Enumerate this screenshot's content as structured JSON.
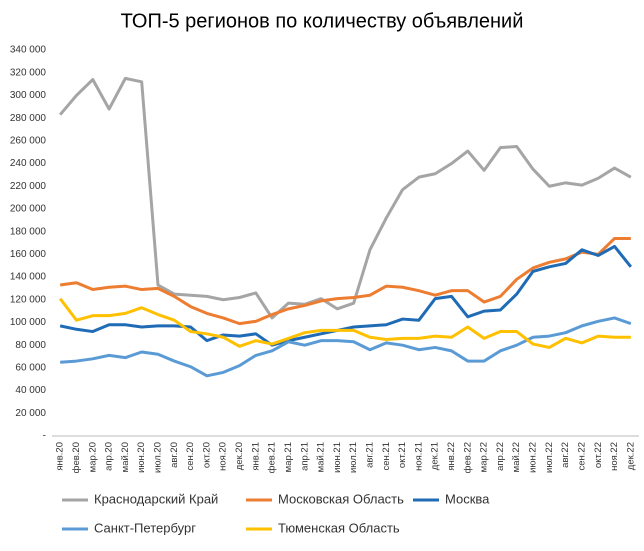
{
  "chart_data": {
    "type": "line",
    "title": "ТОП-5 регионов по количеству объявлений",
    "categories": [
      "янв.20",
      "фев.20",
      "мар.20",
      "апр.20",
      "май.20",
      "июн.20",
      "июл.20",
      "авг.20",
      "сен.20",
      "окт.20",
      "ноя.20",
      "дек.20",
      "янв.21",
      "фев.21",
      "мар.21",
      "апр.21",
      "май.21",
      "июн.21",
      "июл.21",
      "авг.21",
      "сен.21",
      "окт.21",
      "ноя.21",
      "дек.21",
      "янв.22",
      "фев.22",
      "мар.22",
      "апр.22",
      "май.22",
      "июн.22",
      "июл.22",
      "авг.22",
      "сен.22",
      "окт.22",
      "ноя.22",
      "дек.22"
    ],
    "series": [
      {
        "name": "Краснодарский Край",
        "color": "#a5a5a5",
        "values": [
          283000,
          300000,
          314000,
          288000,
          315000,
          312000,
          133000,
          125000,
          124000,
          123000,
          120000,
          122000,
          126000,
          104000,
          117000,
          116000,
          121000,
          112000,
          117000,
          164000,
          192000,
          217000,
          228000,
          231000,
          240000,
          251000,
          234000,
          254000,
          255000,
          235000,
          220000,
          223000,
          221000,
          227000,
          236000,
          228000
        ]
      },
      {
        "name": "Московская Область",
        "color": "#ed7d31",
        "values": [
          133000,
          135000,
          129000,
          131000,
          132000,
          129000,
          130000,
          123000,
          114000,
          108000,
          104000,
          99000,
          101000,
          107000,
          112000,
          115000,
          119000,
          121000,
          122000,
          124000,
          132000,
          131000,
          128000,
          124000,
          128000,
          128000,
          118000,
          123000,
          138000,
          148000,
          153000,
          156000,
          162000,
          160000,
          174000,
          174000
        ]
      },
      {
        "name": "Москва",
        "color": "#1f6bb5",
        "values": [
          97000,
          94000,
          92000,
          98000,
          98000,
          96000,
          97000,
          97000,
          96000,
          84000,
          89000,
          88000,
          90000,
          80000,
          84000,
          87000,
          90000,
          93000,
          96000,
          97000,
          98000,
          103000,
          102000,
          121000,
          123000,
          105000,
          110000,
          111000,
          125000,
          145000,
          149000,
          152000,
          164000,
          159000,
          167000,
          149000
        ]
      },
      {
        "name": "Санкт-Петербург",
        "color": "#5b9bd5",
        "values": [
          65000,
          66000,
          68000,
          71000,
          69000,
          74000,
          72000,
          66000,
          61000,
          53000,
          56000,
          62000,
          71000,
          75000,
          83000,
          80000,
          84000,
          84000,
          83000,
          76000,
          82000,
          80000,
          76000,
          78000,
          75000,
          66000,
          66000,
          75000,
          80000,
          87000,
          88000,
          91000,
          97000,
          101000,
          104000,
          99000
        ]
      },
      {
        "name": "Тюменская Область",
        "color": "#ffc000",
        "values": [
          121000,
          102000,
          106000,
          106000,
          108000,
          113000,
          107000,
          102000,
          92000,
          90000,
          87000,
          79000,
          84000,
          81000,
          86000,
          91000,
          93000,
          93000,
          93000,
          87000,
          85000,
          86000,
          86000,
          88000,
          87000,
          96000,
          86000,
          92000,
          92000,
          81000,
          78000,
          86000,
          82000,
          88000,
          87000,
          87000
        ]
      }
    ],
    "ylim": [
      0,
      340000
    ],
    "yticks": [
      {
        "value": 0,
        "label": "-"
      },
      {
        "value": 20000,
        "label": "20 000"
      },
      {
        "value": 40000,
        "label": "40 000"
      },
      {
        "value": 60000,
        "label": "60 000"
      },
      {
        "value": 80000,
        "label": "80 000"
      },
      {
        "value": 100000,
        "label": "100 000"
      },
      {
        "value": 120000,
        "label": "120 000"
      },
      {
        "value": 140000,
        "label": "140 000"
      },
      {
        "value": 160000,
        "label": "160 000"
      },
      {
        "value": 180000,
        "label": "180 000"
      },
      {
        "value": 200000,
        "label": "200 000"
      },
      {
        "value": 220000,
        "label": "220 000"
      },
      {
        "value": 240000,
        "label": "240 000"
      },
      {
        "value": 260000,
        "label": "260 000"
      },
      {
        "value": 280000,
        "label": "280 000"
      },
      {
        "value": 300000,
        "label": "300 000"
      },
      {
        "value": 320000,
        "label": "320 000"
      },
      {
        "value": 340000,
        "label": "340 000"
      }
    ],
    "grid": false,
    "legend": "bottom"
  }
}
